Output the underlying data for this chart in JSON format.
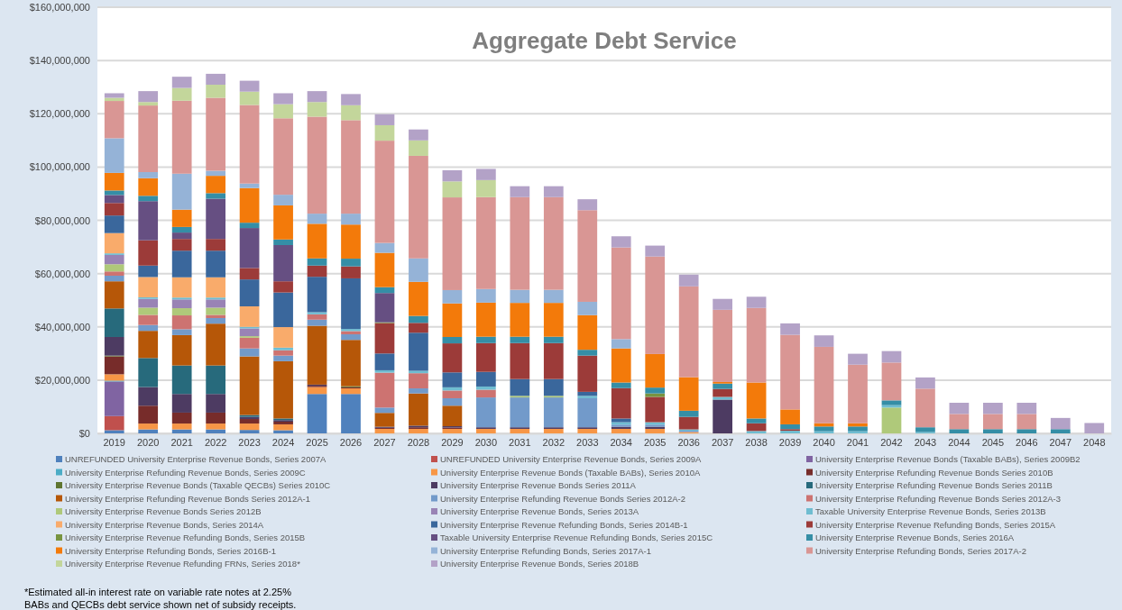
{
  "chart_data": {
    "type": "bar",
    "stacked": true,
    "title": "Aggregate Debt Service",
    "categories": [
      "2019",
      "2020",
      "2021",
      "2022",
      "2023",
      "2024",
      "2025",
      "2026",
      "2027",
      "2028",
      "2029",
      "2030",
      "2031",
      "2032",
      "2033",
      "2034",
      "2035",
      "2036",
      "2037",
      "2038",
      "2039",
      "2040",
      "2041",
      "2042",
      "2043",
      "2044",
      "2045",
      "2046",
      "2047",
      "2048"
    ],
    "ylim": [
      0,
      160000000
    ],
    "yticks": [
      {
        "value": 0,
        "label": "$0"
      },
      {
        "value": 20000000,
        "label": "$20,000,000"
      },
      {
        "value": 40000000,
        "label": "$40,000,000"
      },
      {
        "value": 60000000,
        "label": "$60,000,000"
      },
      {
        "value": 80000000,
        "label": "$80,000,000"
      },
      {
        "value": 100000000,
        "label": "$100,000,000"
      },
      {
        "value": 120000000,
        "label": "$120,000,000"
      },
      {
        "value": 140000000,
        "label": "$140,000,000"
      },
      {
        "value": 160000000,
        "label": "$160,000,000"
      }
    ],
    "grid": "y",
    "legend": "bottom",
    "annotations": [
      "*Estimated all-in interest rate on variable rate notes at 2.25%",
      "BABs and QECBs debt service shown net of subsidy receipts."
    ],
    "series": [
      {
        "name": "UNREFUNDED University Enterprise Revenue Bonds, Series 2007A",
        "color": "#4f81bd",
        "values": [
          1200000,
          1500000,
          1500000,
          1500000,
          1300000,
          1200000,
          14800000,
          14800000,
          null,
          null,
          null,
          null,
          null,
          null,
          null,
          null,
          null,
          null,
          null,
          null,
          null,
          null,
          null,
          null,
          null,
          null,
          null,
          null,
          null,
          null
        ]
      },
      {
        "name": "UNREFUNDED University Enterprise Revenue Bonds, Series 2009A",
        "color": "#c0504d",
        "values": [
          5300000,
          null,
          null,
          null,
          null,
          null,
          null,
          null,
          null,
          null,
          null,
          null,
          null,
          null,
          null,
          null,
          null,
          null,
          null,
          null,
          null,
          null,
          null,
          null,
          null,
          null,
          null,
          null,
          null,
          null
        ]
      },
      {
        "name": "University Enterprise Revenue Bonds (Taxable BABs), Series 2009B2",
        "color": "#8064a2",
        "values": [
          13000000,
          null,
          null,
          null,
          null,
          null,
          null,
          null,
          null,
          null,
          null,
          null,
          null,
          null,
          null,
          null,
          null,
          null,
          null,
          null,
          null,
          null,
          null,
          null,
          null,
          null,
          null,
          null,
          null,
          null
        ]
      },
      {
        "name": "University Enterprise Refunding Revenue Bonds, Series 2009C",
        "color": "#4bacc6",
        "values": [
          300000,
          null,
          null,
          null,
          null,
          null,
          null,
          null,
          null,
          null,
          null,
          null,
          null,
          null,
          null,
          null,
          null,
          null,
          null,
          null,
          null,
          null,
          null,
          null,
          null,
          null,
          null,
          null,
          null,
          null
        ]
      },
      {
        "name": "University Enterprise Revenue Bonds (Taxable BABs), Series 2010A",
        "color": "#f79646",
        "values": [
          2400000,
          2200000,
          2200000,
          2200000,
          2400000,
          2200000,
          2600000,
          2100000,
          1700000,
          1700000,
          1700000,
          1700000,
          1700000,
          1700000,
          1700000,
          1700000,
          1700000,
          500000,
          null,
          null,
          null,
          null,
          null,
          null,
          null,
          null,
          null,
          null,
          null,
          null
        ]
      },
      {
        "name": "University Enterprise Refunding Revenue Bonds Series 2010B",
        "color": "#772c2a",
        "values": [
          6700000,
          6700000,
          4100000,
          4100000,
          1700000,
          1000000,
          500000,
          400000,
          400000,
          600000,
          500000,
          null,
          null,
          null,
          null,
          null,
          null,
          null,
          null,
          null,
          null,
          null,
          null,
          null,
          null,
          null,
          null,
          null,
          null,
          null
        ]
      },
      {
        "name": "University Enterprise Revenue Bonds (Taxable QECBs) Series 2010C",
        "color": "#5f7530",
        "values": [
          300000,
          null,
          null,
          null,
          null,
          null,
          null,
          400000,
          null,
          null,
          null,
          null,
          null,
          null,
          null,
          null,
          null,
          null,
          null,
          null,
          null,
          null,
          null,
          null,
          null,
          null,
          null,
          null,
          null,
          null
        ]
      },
      {
        "name": "University Enterprise Revenue Bonds Series 2011A",
        "color": "#4d3b62",
        "values": [
          7000000,
          7000000,
          7000000,
          7000000,
          800000,
          600000,
          400000,
          null,
          400000,
          600000,
          500000,
          600000,
          600000,
          600000,
          600000,
          800000,
          800000,
          null,
          12700000,
          null,
          null,
          null,
          null,
          null,
          null,
          null,
          null,
          null,
          null,
          null
        ]
      },
      {
        "name": "University Enterprise Refunding Revenue Bonds Series 2011B",
        "color": "#276a7c",
        "values": [
          10700000,
          10900000,
          10700000,
          10700000,
          700000,
          600000,
          null,
          null,
          null,
          null,
          null,
          null,
          null,
          null,
          null,
          null,
          null,
          null,
          null,
          null,
          null,
          null,
          null,
          null,
          null,
          null,
          null,
          null,
          null,
          null
        ]
      },
      {
        "name": "University Enterprise Refunding Revenue Bonds Series 2012A-1",
        "color": "#b65708",
        "values": [
          10200000,
          10200000,
          11400000,
          15700000,
          22000000,
          21500000,
          22100000,
          17400000,
          5200000,
          12100000,
          7700000,
          null,
          null,
          null,
          null,
          null,
          null,
          null,
          null,
          null,
          null,
          null,
          null,
          null,
          null,
          null,
          null,
          null,
          null,
          null
        ]
      },
      {
        "name": "University Enterprise Refunding Revenue Bonds Series 2012A-2",
        "color": "#729aca",
        "values": [
          2100000,
          2200000,
          2200000,
          2100000,
          3000000,
          2100000,
          2300000,
          2100000,
          2000000,
          1900000,
          2800000,
          11200000,
          11200000,
          11200000,
          10900000,
          800000,
          800000,
          500000,
          null,
          null,
          null,
          null,
          null,
          null,
          null,
          null,
          null,
          null,
          null,
          null
        ]
      },
      {
        "name": "University Enterprise Refunding Revenue Bonds Series 2012A-3",
        "color": "#cd7371",
        "values": [
          1600000,
          3800000,
          5200000,
          1200000,
          4000000,
          2000000,
          2000000,
          1200000,
          13100000,
          5700000,
          2900000,
          2900000,
          null,
          null,
          null,
          null,
          null,
          null,
          null,
          null,
          null,
          null,
          null,
          null,
          null,
          null,
          null,
          null,
          null,
          null
        ]
      },
      {
        "name": "University Enterprise Revenue Bonds Series 2012B",
        "color": "#afc97a",
        "values": [
          2700000,
          2700000,
          2700000,
          2700000,
          600000,
          null,
          null,
          null,
          null,
          null,
          null,
          null,
          600000,
          600000,
          null,
          null,
          null,
          null,
          null,
          null,
          null,
          null,
          null,
          9700000,
          null,
          null,
          null,
          null,
          null,
          null
        ]
      },
      {
        "name": "University Enterprise Revenue Bonds, Series 2013A",
        "color": "#9983b5",
        "values": [
          3500000,
          3300000,
          3300000,
          3100000,
          2900000,
          null,
          null,
          null,
          null,
          null,
          null,
          null,
          null,
          null,
          null,
          null,
          null,
          null,
          null,
          null,
          null,
          null,
          null,
          null,
          null,
          null,
          null,
          null,
          null,
          null
        ]
      },
      {
        "name": "Taxable University Enterprise Revenue Bonds, Series 2013B",
        "color": "#6fbdd1",
        "values": [
          600000,
          600000,
          700000,
          700000,
          600000,
          1000000,
          800000,
          800000,
          900000,
          900000,
          1200000,
          1200000,
          null,
          null,
          900000,
          900000,
          900000,
          500000,
          1000000,
          900000,
          1000000,
          800000,
          800000,
          900000,
          500000,
          null,
          null,
          null,
          null,
          null
        ]
      },
      {
        "name": "University Enterprise Revenue Bonds, Series 2014A",
        "color": "#f9ab6b",
        "values": [
          7600000,
          7600000,
          7600000,
          7600000,
          7700000,
          7700000,
          null,
          null,
          null,
          null,
          null,
          null,
          null,
          null,
          null,
          null,
          null,
          null,
          null,
          null,
          null,
          null,
          null,
          null,
          null,
          null,
          null,
          null,
          null,
          null
        ]
      },
      {
        "name": "University Enterprise Revenue Refunding Bonds, Series 2014B-1",
        "color": "#3a679c",
        "values": [
          6600000,
          4300000,
          10000000,
          10000000,
          10100000,
          13000000,
          13300000,
          19000000,
          6300000,
          14300000,
          5600000,
          5500000,
          6300000,
          6300000,
          1500000,
          1400000,
          null,
          null,
          null,
          null,
          null,
          null,
          null,
          null,
          null,
          null,
          null,
          null,
          null,
          null
        ]
      },
      {
        "name": "University Enterprise Revenue Refunding Bonds, Series 2015A",
        "color": "#9c3b39",
        "values": [
          4700000,
          9500000,
          4400000,
          4400000,
          4300000,
          4200000,
          4200000,
          4500000,
          11400000,
          3700000,
          10900000,
          10800000,
          13500000,
          13500000,
          13600000,
          11400000,
          9500000,
          4700000,
          3000000,
          2900000,
          600000,
          null,
          null,
          null,
          null,
          null,
          null,
          null,
          null,
          null
        ]
      },
      {
        "name": "University Enterprise Revenue Refunding Bonds, Series 2015B",
        "color": "#789440",
        "values": [
          null,
          null,
          null,
          null,
          null,
          null,
          null,
          null,
          300000,
          null,
          null,
          null,
          null,
          null,
          null,
          null,
          1300000,
          null,
          null,
          null,
          null,
          null,
          null,
          null,
          null,
          null,
          null,
          null,
          null,
          null
        ]
      },
      {
        "name": "Taxable University Enterprise Revenue Refunding Bonds, Series 2015C",
        "color": "#664f82",
        "values": [
          3000000,
          14700000,
          2400000,
          15100000,
          15000000,
          13600000,
          null,
          null,
          11000000,
          null,
          null,
          null,
          null,
          null,
          null,
          null,
          null,
          null,
          null,
          null,
          null,
          null,
          null,
          null,
          null,
          null,
          null,
          null,
          null,
          null
        ]
      },
      {
        "name": "University Enterprise Revenue Bonds, Series 2016A",
        "color": "#358ea6",
        "values": [
          1700000,
          2000000,
          2100000,
          2100000,
          2000000,
          2100000,
          2700000,
          2900000,
          2200000,
          2600000,
          2400000,
          2400000,
          2400000,
          2400000,
          2200000,
          2100000,
          2200000,
          2300000,
          2000000,
          1800000,
          1800000,
          1800000,
          1800000,
          1800000,
          1800000,
          1600000,
          1600000,
          1600000,
          1600000,
          null
        ]
      },
      {
        "name": "University Enterprise Refunding Bonds, Series 2016B-1",
        "color": "#f37a0a",
        "values": [
          6600000,
          6600000,
          6500000,
          6500000,
          13000000,
          12800000,
          13000000,
          12800000,
          12900000,
          12800000,
          12600000,
          12800000,
          12700000,
          12700000,
          13000000,
          12800000,
          12600000,
          12600000,
          600000,
          13500000,
          5600000,
          1200000,
          1200000,
          null,
          null,
          null,
          null,
          null,
          null,
          null
        ]
      },
      {
        "name": "University Enterprise Refunding Bonds, Series 2017A-1",
        "color": "#95b3d7",
        "values": [
          13000000,
          2300000,
          13500000,
          1900000,
          1700000,
          4000000,
          3800000,
          4100000,
          3700000,
          8800000,
          5000000,
          5100000,
          4900000,
          4900000,
          5000000,
          3500000,
          null,
          null,
          null,
          null,
          null,
          null,
          null,
          null,
          null,
          null,
          null,
          null,
          null,
          null
        ]
      },
      {
        "name": "University Enterprise Refunding Bonds, Series 2017A-2",
        "color": "#d99694",
        "values": [
          14000000,
          25000000,
          27400000,
          27400000,
          29500000,
          28700000,
          36400000,
          35100000,
          38400000,
          38500000,
          34800000,
          34500000,
          34800000,
          34800000,
          34400000,
          34400000,
          36600000,
          34100000,
          27100000,
          28000000,
          28000000,
          28700000,
          22000000,
          14200000,
          14500000,
          5700000,
          5700000,
          5700000,
          null,
          null
        ]
      },
      {
        "name": "University Enterprise Revenue Refunding FRNs, Series 2018*",
        "color": "#c3d69b",
        "values": [
          1200000,
          1300000,
          4800000,
          4900000,
          5000000,
          5300000,
          5500000,
          5600000,
          5800000,
          5800000,
          6000000,
          6400000,
          null,
          null,
          null,
          null,
          null,
          null,
          null,
          null,
          null,
          null,
          null,
          null,
          null,
          null,
          null,
          null,
          null,
          null
        ]
      },
      {
        "name": "University Enterprise Revenue Bonds, Series 2018B",
        "color": "#b3a2c7",
        "values": [
          1700000,
          4100000,
          4200000,
          4100000,
          4100000,
          4100000,
          4100000,
          4200000,
          4100000,
          4100000,
          4200000,
          4200000,
          4100000,
          4100000,
          4100000,
          4200000,
          4100000,
          4400000,
          4100000,
          4200000,
          4300000,
          4300000,
          4100000,
          4300000,
          4200000,
          4200000,
          4200000,
          4200000,
          4200000,
          3900000
        ]
      }
    ]
  }
}
